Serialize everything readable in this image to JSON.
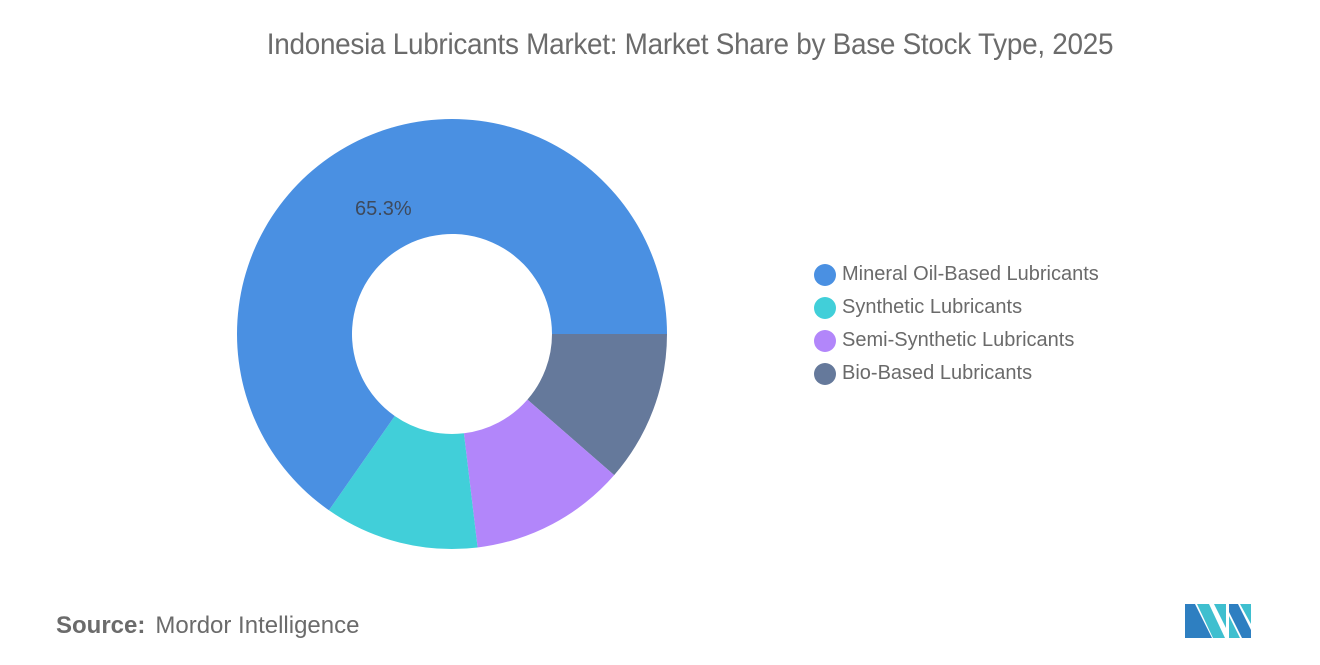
{
  "title": "Indonesia Lubricants Market: Market Share by Base Stock Type, 2025",
  "chart_data": {
    "type": "pie",
    "variant": "donut",
    "title": "Indonesia Lubricants Market: Market Share by Base Stock Type, 2025",
    "categories": [
      "Mineral Oil-Based Lubricants",
      "Synthetic Lubricants",
      "Semi-Synthetic Lubricants",
      "Bio-Based Lubricants"
    ],
    "values": [
      65.3,
      11.6,
      11.7,
      11.4
    ],
    "colors": [
      "#4a90e2",
      "#41cfd9",
      "#b286fa",
      "#65799b"
    ],
    "data_labels": [
      {
        "category": "Mineral Oil-Based Lubricants",
        "text": "65.3%"
      }
    ],
    "legend_position": "right",
    "unit": "%"
  },
  "slice_label": "65.3%",
  "legend": {
    "items": [
      {
        "label": "Mineral Oil-Based Lubricants",
        "color": "#4a90e2"
      },
      {
        "label": "Synthetic Lubricants",
        "color": "#41cfd9"
      },
      {
        "label": "Semi-Synthetic Lubricants",
        "color": "#b286fa"
      },
      {
        "label": "Bio-Based Lubricants",
        "color": "#65799b"
      }
    ]
  },
  "source": {
    "key": "Source:",
    "value": "Mordor Intelligence"
  },
  "logo": {
    "icon": "mordor-intelligence-logo-icon"
  }
}
